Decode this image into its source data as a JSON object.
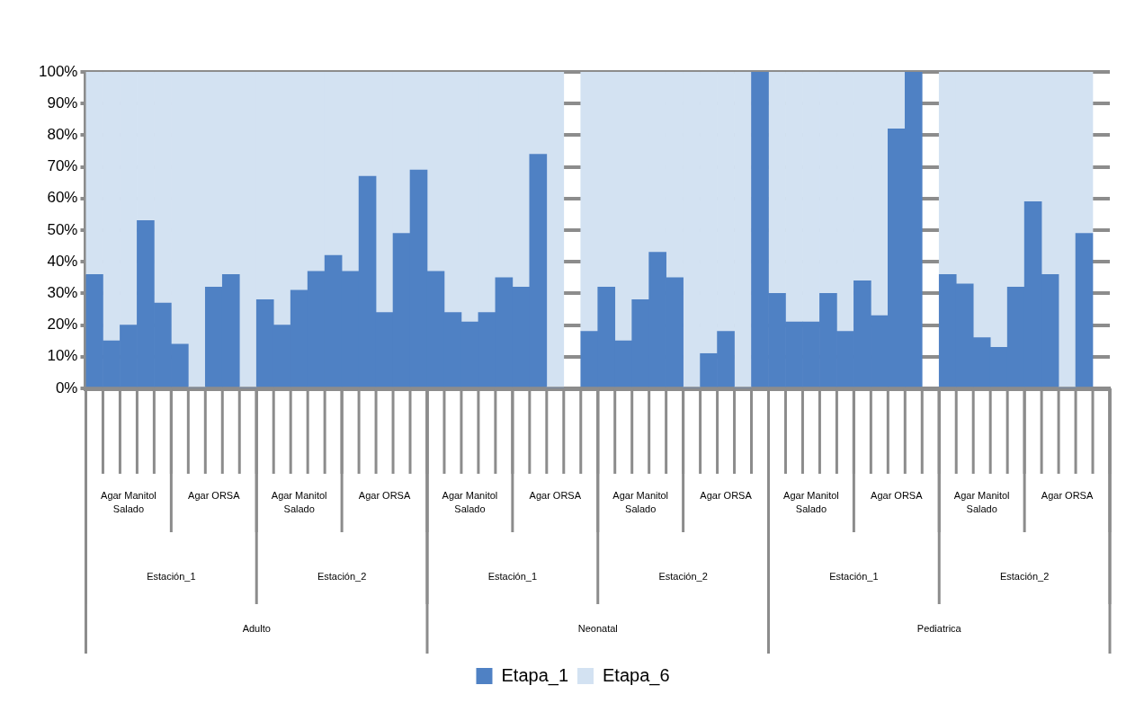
{
  "chart_data": {
    "type": "bar",
    "stacked": true,
    "categories": [
      null,
      null,
      null,
      null,
      null,
      null,
      null,
      null,
      null,
      null,
      null,
      null,
      null,
      null,
      null,
      null,
      null,
      null,
      null,
      null,
      null,
      null,
      null,
      null,
      null,
      null,
      null,
      null,
      null,
      null,
      null,
      null,
      null,
      null,
      null,
      null,
      null,
      null,
      null,
      null,
      null,
      null,
      null,
      null,
      null,
      null,
      null,
      null,
      null,
      null,
      null,
      null,
      null,
      null,
      null,
      null,
      null,
      null,
      null,
      null
    ],
    "series": [
      {
        "name": "Etapa_1",
        "color": "#4f81c4",
        "values": [
          36,
          15,
          20,
          53,
          27,
          14,
          0,
          32,
          36,
          0,
          28,
          20,
          31,
          37,
          42,
          37,
          67,
          24,
          49,
          69,
          37,
          24,
          21,
          24,
          35,
          32,
          74,
          0,
          null,
          18,
          32,
          15,
          28,
          43,
          35,
          0,
          11,
          18,
          0,
          100,
          30,
          21,
          21,
          30,
          18,
          34,
          23,
          82,
          100,
          null,
          36,
          33,
          16,
          13,
          32,
          59,
          36,
          0,
          49,
          null
        ]
      },
      {
        "name": "Etapa_6",
        "color": "#d3e2f2",
        "values": [
          64,
          85,
          80,
          47,
          73,
          86,
          100,
          68,
          64,
          100,
          72,
          80,
          69,
          63,
          58,
          63,
          33,
          76,
          51,
          31,
          63,
          76,
          79,
          76,
          65,
          68,
          26,
          100,
          null,
          82,
          68,
          85,
          72,
          57,
          65,
          100,
          89,
          82,
          100,
          0,
          70,
          79,
          79,
          70,
          82,
          66,
          77,
          18,
          0,
          null,
          64,
          67,
          84,
          87,
          68,
          41,
          64,
          100,
          51,
          null
        ]
      }
    ],
    "ylim": [
      0,
      100
    ],
    "yticks": [
      {
        "value": 0,
        "label": "0%"
      },
      {
        "value": 10,
        "label": "10%"
      },
      {
        "value": 20,
        "label": "20%"
      },
      {
        "value": 30,
        "label": "30%"
      },
      {
        "value": 40,
        "label": "40%"
      },
      {
        "value": 50,
        "label": "50%"
      },
      {
        "value": 60,
        "label": "60%"
      },
      {
        "value": 70,
        "label": "70%"
      },
      {
        "value": 80,
        "label": "80%"
      },
      {
        "value": 90,
        "label": "90%"
      },
      {
        "value": 100,
        "label": "100%"
      }
    ],
    "grid": "y",
    "legend": "bottom",
    "annotations": [
      "Agar Manitol Salado",
      "Agar ORSA",
      "Agar Manitol Salado",
      "Agar ORSA",
      "Agar Manitol Salado",
      "Agar ORSA",
      "Agar Manitol Salado",
      "Agar ORSA",
      "Agar Manitol Salado",
      "Agar ORSA",
      "Agar Manitol Salado",
      "Agar ORSA",
      "Estación_1",
      "Estación_2",
      "Estación_1",
      "Estación_2",
      "Estación_1",
      "Estación_2",
      "Adulto",
      "Neonatal",
      "Pediatrica"
    ]
  }
}
